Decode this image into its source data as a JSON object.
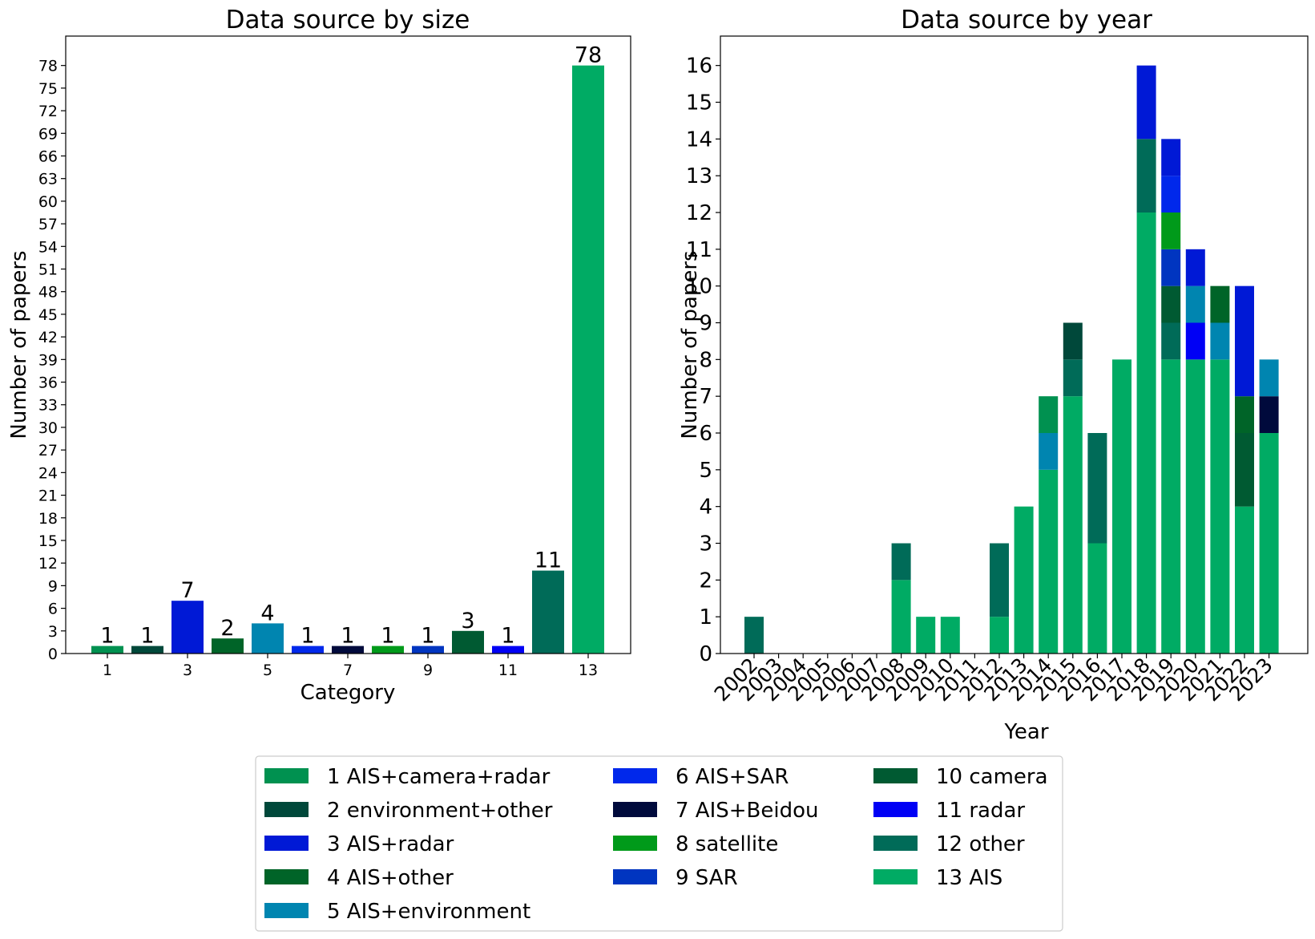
{
  "colors": {
    "AIS+camera+radar": "#009150",
    "environment+other": "#00483a",
    "AIS+radar": "#0019d6",
    "AIS+other": "#006428",
    "AIS+environment": "#0085b0",
    "AIS+SAR": "#0028eb",
    "AIS+Beidou": "#000a3c",
    "satellite": "#009a1a",
    "SAR": "#0035c0",
    "camera": "#005a32",
    "radar": "#0000f5",
    "other": "#006b58",
    "AIS": "#00ab64"
  },
  "chart_data": [
    {
      "type": "bar",
      "title": "Data source by size",
      "xlabel": "Category",
      "ylabel": "Number of papers",
      "categories": [
        1,
        2,
        3,
        4,
        5,
        6,
        7,
        8,
        9,
        10,
        11,
        12,
        13
      ],
      "x_ticks": [
        "1",
        "3",
        "5",
        "7",
        "9",
        "11",
        "13"
      ],
      "values": [
        1,
        1,
        7,
        2,
        4,
        1,
        1,
        1,
        1,
        3,
        1,
        11,
        78
      ],
      "series_keys": [
        "AIS+camera+radar",
        "environment+other",
        "AIS+radar",
        "AIS+other",
        "AIS+environment",
        "AIS+SAR",
        "AIS+Beidou",
        "satellite",
        "SAR",
        "camera",
        "radar",
        "other",
        "AIS"
      ],
      "ylim": [
        0,
        81.9
      ],
      "y_ticks": [
        "0",
        "3",
        "6",
        "9",
        "12",
        "15",
        "18",
        "21",
        "24",
        "27",
        "30",
        "33",
        "36",
        "39",
        "42",
        "45",
        "48",
        "51",
        "54",
        "57",
        "60",
        "63",
        "66",
        "69",
        "72",
        "75",
        "78"
      ],
      "data_labels": [
        "1",
        "1",
        "7",
        "2",
        "4",
        "1",
        "1",
        "1",
        "1",
        "3",
        "1",
        "11",
        "78"
      ]
    },
    {
      "type": "bar",
      "stacked": true,
      "title": "Data source by year",
      "xlabel": "Year",
      "ylabel": "Number of papers",
      "categories": [
        "2002",
        "2003",
        "2004",
        "2005",
        "2006",
        "2007",
        "2008",
        "2009",
        "2010",
        "2011",
        "2012",
        "2013",
        "2014",
        "2015",
        "2016",
        "2017",
        "2018",
        "2019",
        "2020",
        "2021",
        "2022",
        "2023"
      ],
      "ylim": [
        0,
        16.8
      ],
      "y_ticks": [
        "0",
        "1",
        "2",
        "3",
        "4",
        "5",
        "6",
        "7",
        "8",
        "9",
        "10",
        "11",
        "12",
        "13",
        "14",
        "15",
        "16"
      ],
      "stacks": [
        [
          {
            "k": "other",
            "v": 1
          }
        ],
        [],
        [],
        [],
        [],
        [],
        [
          {
            "k": "AIS",
            "v": 2
          },
          {
            "k": "other",
            "v": 1
          }
        ],
        [
          {
            "k": "AIS",
            "v": 1
          }
        ],
        [
          {
            "k": "AIS",
            "v": 1
          }
        ],
        [],
        [
          {
            "k": "AIS",
            "v": 1
          },
          {
            "k": "other",
            "v": 2
          }
        ],
        [
          {
            "k": "AIS",
            "v": 4
          }
        ],
        [
          {
            "k": "AIS",
            "v": 5
          },
          {
            "k": "AIS+environment",
            "v": 1
          },
          {
            "k": "AIS+camera+radar",
            "v": 1
          }
        ],
        [
          {
            "k": "AIS",
            "v": 7
          },
          {
            "k": "other",
            "v": 1
          },
          {
            "k": "environment+other",
            "v": 1
          }
        ],
        [
          {
            "k": "AIS",
            "v": 3
          },
          {
            "k": "other",
            "v": 3
          }
        ],
        [
          {
            "k": "AIS",
            "v": 8
          }
        ],
        [
          {
            "k": "AIS",
            "v": 12
          },
          {
            "k": "other",
            "v": 2
          },
          {
            "k": "AIS+radar",
            "v": 2
          }
        ],
        [
          {
            "k": "AIS",
            "v": 8
          },
          {
            "k": "other",
            "v": 1
          },
          {
            "k": "camera",
            "v": 1
          },
          {
            "k": "SAR",
            "v": 1
          },
          {
            "k": "satellite",
            "v": 1
          },
          {
            "k": "AIS+SAR",
            "v": 1
          },
          {
            "k": "AIS+radar",
            "v": 1
          }
        ],
        [
          {
            "k": "AIS",
            "v": 8
          },
          {
            "k": "radar",
            "v": 1
          },
          {
            "k": "AIS+environment",
            "v": 1
          },
          {
            "k": "AIS+radar",
            "v": 1
          }
        ],
        [
          {
            "k": "AIS",
            "v": 8
          },
          {
            "k": "AIS+environment",
            "v": 1
          },
          {
            "k": "AIS+other",
            "v": 1
          }
        ],
        [
          {
            "k": "AIS",
            "v": 4
          },
          {
            "k": "camera",
            "v": 2
          },
          {
            "k": "AIS+other",
            "v": 1
          },
          {
            "k": "AIS+radar",
            "v": 3
          }
        ],
        [
          {
            "k": "AIS",
            "v": 6
          },
          {
            "k": "AIS+Beidou",
            "v": 1
          },
          {
            "k": "AIS+environment",
            "v": 1
          }
        ]
      ]
    }
  ],
  "legend": {
    "placement": "bottom-center",
    "entries": [
      {
        "label": "1 AIS+camera+radar",
        "key": "AIS+camera+radar"
      },
      {
        "label": "2 environment+other",
        "key": "environment+other"
      },
      {
        "label": "3 AIS+radar",
        "key": "AIS+radar"
      },
      {
        "label": "4 AIS+other",
        "key": "AIS+other"
      },
      {
        "label": "5 AIS+environment",
        "key": "AIS+environment"
      },
      {
        "label": "6 AIS+SAR",
        "key": "AIS+SAR"
      },
      {
        "label": "7 AIS+Beidou",
        "key": "AIS+Beidou"
      },
      {
        "label": "8 satellite",
        "key": "satellite"
      },
      {
        "label": "9 SAR",
        "key": "SAR"
      },
      {
        "label": "10 camera",
        "key": "camera"
      },
      {
        "label": "11 radar",
        "key": "radar"
      },
      {
        "label": "12 other",
        "key": "other"
      },
      {
        "label": "13 AIS",
        "key": "AIS"
      }
    ]
  }
}
